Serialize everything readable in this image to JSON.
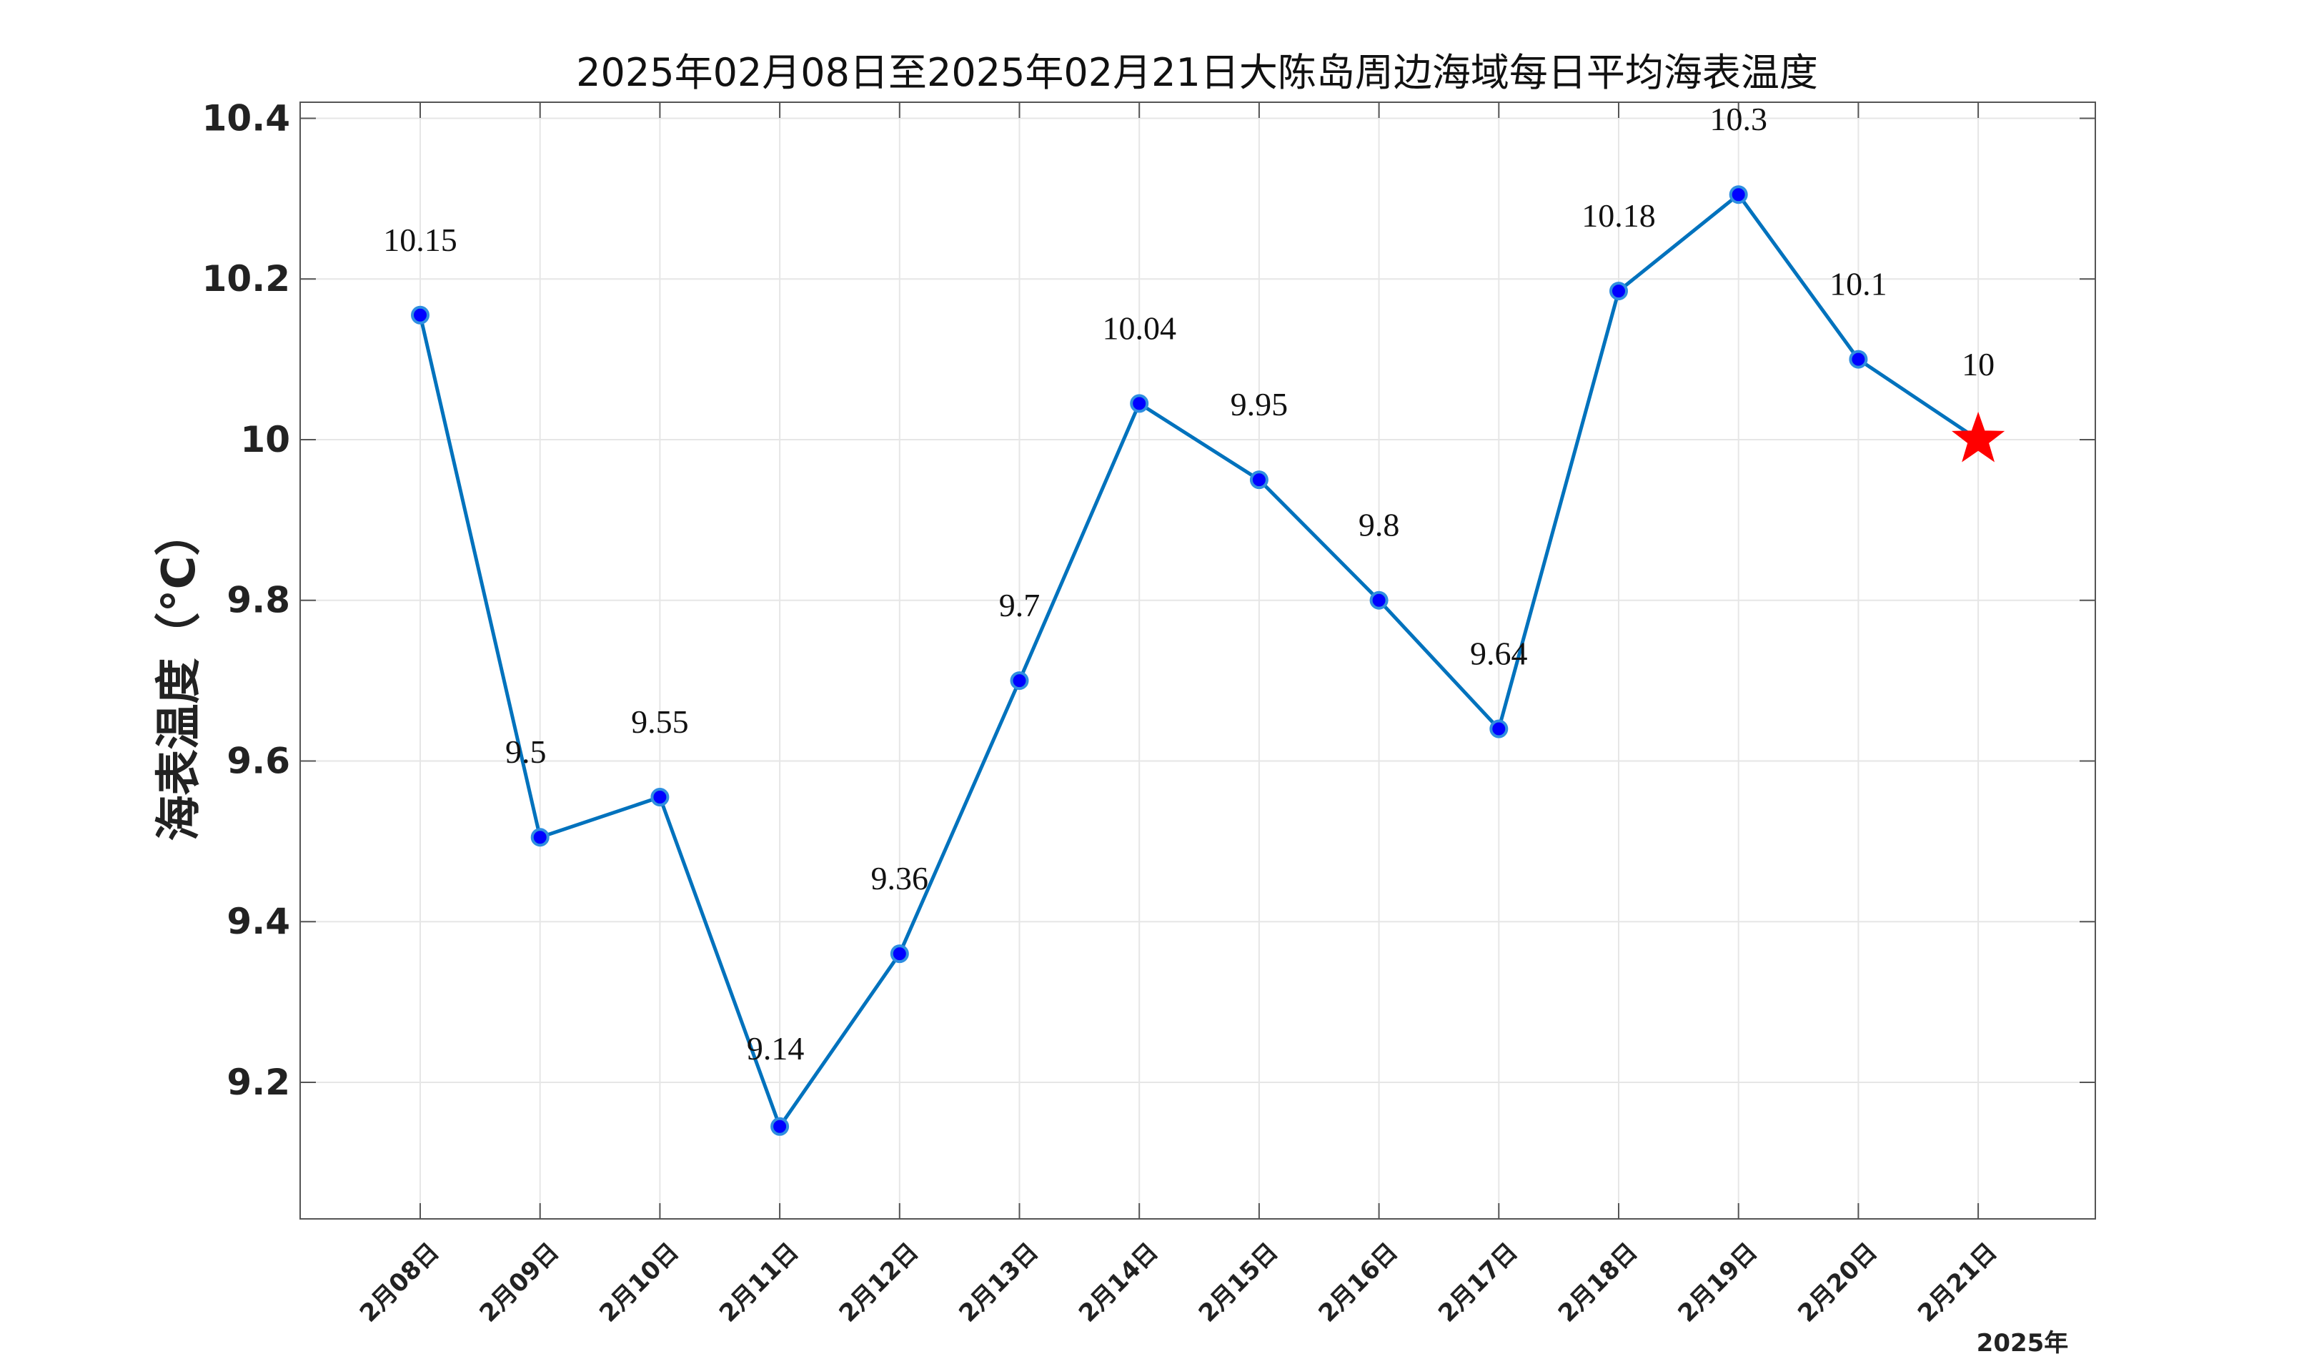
{
  "chart_data": {
    "type": "line",
    "title": "2025年02月08日至2025年02月21日大陈岛周边海域每日平均海表温度",
    "ylabel": "海表温度（°C）",
    "xlabel": "",
    "year_label": "2025年",
    "categories": [
      "2月08日",
      "2月09日",
      "2月10日",
      "2月11日",
      "2月12日",
      "2月13日",
      "2月14日",
      "2月15日",
      "2月16日",
      "2月17日",
      "2月18日",
      "2月19日",
      "2月20日",
      "2月21日"
    ],
    "values": [
      10.155,
      9.505,
      9.555,
      9.145,
      9.36,
      9.7,
      10.045,
      9.95,
      9.8,
      9.64,
      10.185,
      10.305,
      10.1,
      10.0
    ],
    "data_labels": [
      "10.15",
      "9.5",
      "9.55",
      "9.14",
      "9.36",
      "9.7",
      "10.04",
      "9.95",
      "9.8",
      "9.64",
      "10.18",
      "10.3",
      "10.1",
      "10"
    ],
    "yticks": [
      9.2,
      9.4,
      9.6,
      9.8,
      10,
      10.2,
      10.4
    ],
    "ytick_labels": [
      "9.2",
      "9.4",
      "9.6",
      "9.8",
      "10",
      "10.2",
      "10.4"
    ],
    "ylim": [
      9.03,
      10.42
    ],
    "grid": true,
    "legend": "none",
    "highlight": {
      "index": 13,
      "marker": "star",
      "color": "#ff0000"
    },
    "colors": {
      "line": "#0072bd",
      "marker_fill": "#0000ff",
      "marker_edge": "#2f8fe0",
      "grid": "#e6e6e6",
      "axis": "#555555"
    }
  }
}
